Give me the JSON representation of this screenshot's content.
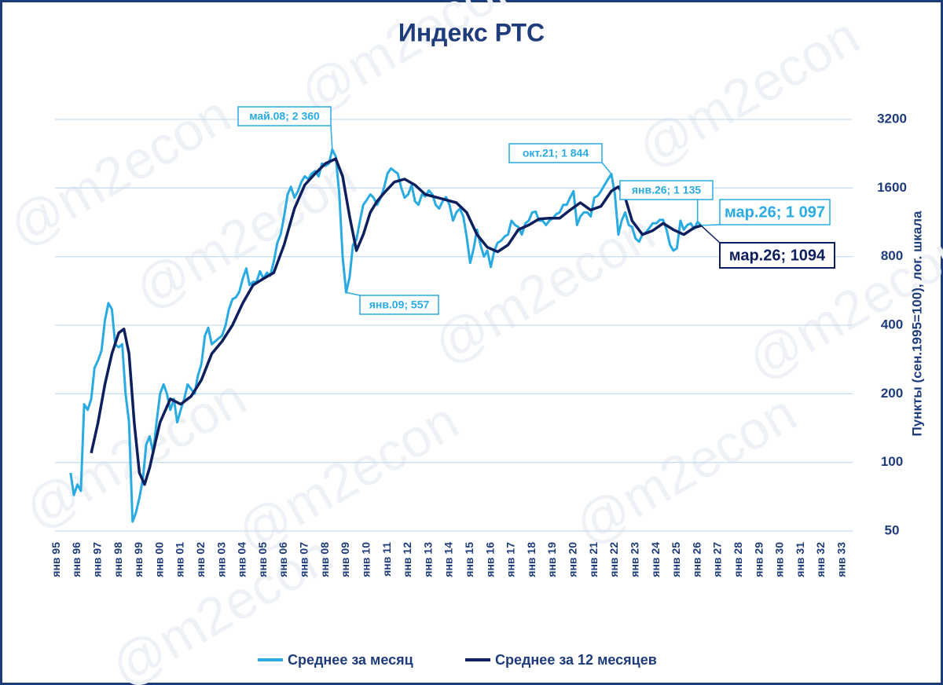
{
  "watermark": "@m2econ",
  "chart_data": {
    "type": "line",
    "title": "Индекс РТС",
    "y_label": "Пункты (сен.1995=100), лог. шкала",
    "y_scale": "log",
    "grid": true,
    "ylim": [
      50,
      3200
    ],
    "yticks": [
      50,
      100,
      200,
      400,
      800,
      1600,
      3200
    ],
    "xlim": [
      1994.5,
      2033.5
    ],
    "xticks": [
      {
        "value": 1995,
        "label": "янв 95"
      },
      {
        "value": 1996,
        "label": "янв 96"
      },
      {
        "value": 1997,
        "label": "янв 97"
      },
      {
        "value": 1998,
        "label": "янв 98"
      },
      {
        "value": 1999,
        "label": "янв 99"
      },
      {
        "value": 2000,
        "label": "янв 00"
      },
      {
        "value": 2001,
        "label": "янв 01"
      },
      {
        "value": 2002,
        "label": "янв 02"
      },
      {
        "value": 2003,
        "label": "янв 03"
      },
      {
        "value": 2004,
        "label": "янв 04"
      },
      {
        "value": 2005,
        "label": "янв 05"
      },
      {
        "value": 2006,
        "label": "янв 06"
      },
      {
        "value": 2007,
        "label": "янв 07"
      },
      {
        "value": 2008,
        "label": "янв 08"
      },
      {
        "value": 2009,
        "label": "янв 09"
      },
      {
        "value": 2010,
        "label": "янв 10"
      },
      {
        "value": 2011,
        "label": "янв 11"
      },
      {
        "value": 2012,
        "label": "янв 12"
      },
      {
        "value": 2013,
        "label": "янв 13"
      },
      {
        "value": 2014,
        "label": "янв 14"
      },
      {
        "value": 2015,
        "label": "янв 15"
      },
      {
        "value": 2016,
        "label": "янв 16"
      },
      {
        "value": 2017,
        "label": "янв 17"
      },
      {
        "value": 2018,
        "label": "янв 18"
      },
      {
        "value": 2019,
        "label": "янв 19"
      },
      {
        "value": 2020,
        "label": "янв 20"
      },
      {
        "value": 2021,
        "label": "янв 21"
      },
      {
        "value": 2022,
        "label": "янв 22"
      },
      {
        "value": 2023,
        "label": "янв 23"
      },
      {
        "value": 2024,
        "label": "янв 24"
      },
      {
        "value": 2025,
        "label": "янв 25"
      },
      {
        "value": 2026,
        "label": "янв 26"
      },
      {
        "value": 2027,
        "label": "янв 27"
      },
      {
        "value": 2028,
        "label": "янв 28"
      },
      {
        "value": 2029,
        "label": "янв 29"
      },
      {
        "value": 2030,
        "label": "янв 30"
      },
      {
        "value": 2031,
        "label": "янв 31"
      },
      {
        "value": 2032,
        "label": "янв 32"
      },
      {
        "value": 2033,
        "label": "янв 33"
      }
    ],
    "series": [
      {
        "name": "Среднее за месяц",
        "color": "#29abe2",
        "x": [
          1995.67,
          1995.83,
          1996.0,
          1996.17,
          1996.33,
          1996.5,
          1996.67,
          1996.83,
          1997.0,
          1997.17,
          1997.33,
          1997.5,
          1997.67,
          1997.83,
          1998.0,
          1998.17,
          1998.33,
          1998.5,
          1998.67,
          1998.83,
          1999.0,
          1999.17,
          1999.33,
          1999.5,
          1999.67,
          1999.83,
          2000.0,
          2000.17,
          2000.33,
          2000.5,
          2000.67,
          2000.83,
          2001.0,
          2001.17,
          2001.33,
          2001.5,
          2001.67,
          2001.83,
          2002.0,
          2002.17,
          2002.33,
          2002.5,
          2002.67,
          2002.83,
          2003.0,
          2003.17,
          2003.33,
          2003.5,
          2003.67,
          2003.83,
          2004.0,
          2004.17,
          2004.33,
          2004.5,
          2004.67,
          2004.83,
          2005.0,
          2005.17,
          2005.33,
          2005.5,
          2005.67,
          2005.83,
          2006.0,
          2006.17,
          2006.33,
          2006.5,
          2006.67,
          2006.83,
          2007.0,
          2007.17,
          2007.33,
          2007.5,
          2007.67,
          2007.83,
          2008.0,
          2008.17,
          2008.33,
          2008.5,
          2008.67,
          2008.83,
          2009.0,
          2009.17,
          2009.33,
          2009.5,
          2009.67,
          2009.83,
          2010.0,
          2010.17,
          2010.33,
          2010.5,
          2010.67,
          2010.83,
          2011.0,
          2011.17,
          2011.33,
          2011.5,
          2011.67,
          2011.83,
          2012.0,
          2012.17,
          2012.33,
          2012.5,
          2012.67,
          2012.83,
          2013.0,
          2013.17,
          2013.33,
          2013.5,
          2013.67,
          2013.83,
          2014.0,
          2014.17,
          2014.33,
          2014.5,
          2014.67,
          2014.83,
          2015.0,
          2015.17,
          2015.33,
          2015.5,
          2015.67,
          2015.83,
          2016.0,
          2016.17,
          2016.33,
          2016.5,
          2016.67,
          2016.83,
          2017.0,
          2017.17,
          2017.33,
          2017.5,
          2017.67,
          2017.83,
          2018.0,
          2018.17,
          2018.33,
          2018.5,
          2018.67,
          2018.83,
          2019.0,
          2019.17,
          2019.33,
          2019.5,
          2019.67,
          2019.83,
          2020.0,
          2020.17,
          2020.33,
          2020.5,
          2020.67,
          2020.83,
          2021.0,
          2021.17,
          2021.33,
          2021.5,
          2021.67,
          2021.83,
          2022.0,
          2022.17,
          2022.33,
          2022.5,
          2022.67,
          2022.83,
          2023.0,
          2023.17,
          2023.33,
          2023.5,
          2023.67,
          2023.83,
          2024.0,
          2024.17,
          2024.33,
          2024.5,
          2024.67,
          2024.83,
          2025.0,
          2025.17,
          2025.33,
          2025.5,
          2025.67,
          2025.83,
          2026.0,
          2026.17
        ],
        "values": [
          90,
          72,
          80,
          75,
          180,
          170,
          190,
          260,
          280,
          310,
          420,
          500,
          470,
          330,
          320,
          330,
          200,
          150,
          55,
          60,
          70,
          85,
          120,
          130,
          110,
          150,
          200,
          220,
          200,
          170,
          190,
          150,
          170,
          190,
          220,
          210,
          200,
          240,
          270,
          360,
          390,
          330,
          340,
          350,
          360,
          400,
          470,
          520,
          530,
          560,
          640,
          710,
          600,
          620,
          620,
          690,
          640,
          680,
          660,
          760,
          920,
          1000,
          1200,
          1500,
          1620,
          1450,
          1550,
          1700,
          1800,
          1750,
          1850,
          1900,
          1800,
          2050,
          2000,
          2050,
          2360,
          2200,
          1500,
          800,
          557,
          650,
          900,
          950,
          1150,
          1350,
          1420,
          1500,
          1450,
          1350,
          1450,
          1600,
          1850,
          1950,
          1900,
          1850,
          1600,
          1450,
          1500,
          1650,
          1400,
          1350,
          1500,
          1470,
          1560,
          1500,
          1350,
          1300,
          1400,
          1460,
          1350,
          1150,
          1250,
          1300,
          1200,
          980,
          750,
          870,
          1050,
          900,
          800,
          850,
          720,
          850,
          920,
          940,
          980,
          1000,
          1150,
          1100,
          1080,
          1000,
          1120,
          1150,
          1250,
          1260,
          1150,
          1150,
          1100,
          1150,
          1180,
          1230,
          1250,
          1350,
          1350,
          1450,
          1550,
          1100,
          1200,
          1250,
          1250,
          1200,
          1450,
          1480,
          1550,
          1650,
          1750,
          1844,
          1500,
          1000,
          1150,
          1250,
          1100,
          1080,
          960,
          930,
          1000,
          1020,
          1070,
          1120,
          1120,
          1160,
          1160,
          1050,
          900,
          850,
          870,
          1150,
          1050,
          1100,
          1120,
          1060,
          1135,
          1097
        ]
      },
      {
        "name": "Среднее за 12 месяцев",
        "color": "#0d1f5c",
        "x": [
          1996.67,
          1997.0,
          1997.33,
          1997.67,
          1998.0,
          1998.25,
          1998.5,
          1998.75,
          1999.0,
          1999.25,
          1999.5,
          1999.75,
          2000.0,
          2000.5,
          2001.0,
          2001.5,
          2002.0,
          2002.5,
          2003.0,
          2003.5,
          2004.0,
          2004.5,
          2005.0,
          2005.5,
          2006.0,
          2006.5,
          2007.0,
          2007.5,
          2008.0,
          2008.5,
          2008.83,
          2009.17,
          2009.5,
          2009.83,
          2010.17,
          2010.5,
          2010.83,
          2011.33,
          2011.83,
          2012.33,
          2012.83,
          2013.33,
          2013.83,
          2014.33,
          2014.83,
          2015.33,
          2015.83,
          2016.33,
          2016.83,
          2017.33,
          2017.83,
          2018.33,
          2018.83,
          2019.33,
          2019.83,
          2020.33,
          2020.83,
          2021.33,
          2021.83,
          2022.17,
          2022.5,
          2022.83,
          2023.33,
          2023.83,
          2024.33,
          2024.83,
          2025.33,
          2025.83,
          2026.17
        ],
        "values": [
          110,
          150,
          220,
          300,
          370,
          385,
          300,
          150,
          90,
          80,
          95,
          120,
          150,
          190,
          180,
          195,
          230,
          300,
          340,
          400,
          500,
          600,
          640,
          680,
          900,
          1300,
          1650,
          1850,
          2050,
          2150,
          1800,
          1200,
          850,
          1000,
          1250,
          1400,
          1520,
          1700,
          1750,
          1650,
          1500,
          1460,
          1420,
          1380,
          1250,
          1000,
          880,
          840,
          900,
          1050,
          1100,
          1170,
          1180,
          1180,
          1280,
          1380,
          1280,
          1330,
          1550,
          1620,
          1450,
          1150,
          1000,
          1040,
          1120,
          1050,
          1000,
          1070,
          1094
        ]
      }
    ],
    "annotations": [
      {
        "text": "май.08; 2 360",
        "x": 2008.33,
        "y": 2360
      },
      {
        "text": "янв.09; 557",
        "x": 2009.0,
        "y": 557
      },
      {
        "text": "окт.21; 1 844",
        "x": 2021.83,
        "y": 1844
      },
      {
        "text": "янв.26; 1 135",
        "x": 2026.0,
        "y": 1135
      },
      {
        "text": "мар.26; 1 097",
        "x": 2026.17,
        "y": 1097
      },
      {
        "text": "мар.26; 1094",
        "x": 2026.17,
        "y": 1094
      }
    ]
  }
}
